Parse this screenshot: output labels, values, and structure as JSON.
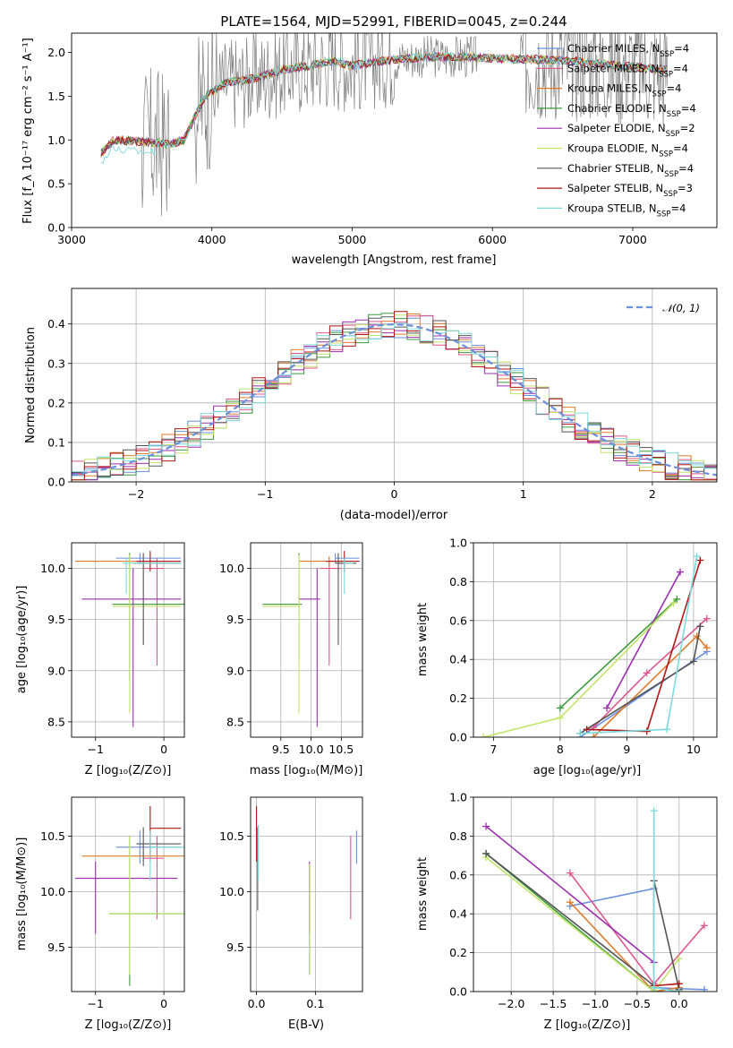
{
  "colors": {
    "chab_miles": "#6a8fdb",
    "salp_miles": "#e0578e",
    "krou_miles": "#e07b2e",
    "chab_elodie": "#3e9a3e",
    "salp_elodie": "#9b2fae",
    "krou_elodie": "#c3e46a",
    "chab_stelib": "#555555",
    "salp_stelib": "#b11515",
    "krou_stelib": "#7dd9dc",
    "data_gray": "#808080"
  },
  "chart_data": [
    {
      "id": "spectrum",
      "type": "line",
      "title": "PLATE=1564, MJD=52991, FIBERID=0045, z=0.244",
      "xlabel": "wavelength [Angstrom, rest frame]",
      "ylabel": "Flux [f_λ 10⁻¹⁷ erg cm⁻² s⁻¹ A⁻¹]",
      "xlim": [
        3000,
        7600
      ],
      "ylim": [
        0,
        2.22
      ],
      "xticks": [
        "3000",
        "4000",
        "5000",
        "6000",
        "7000"
      ],
      "yticks": [
        "0.0",
        "0.5",
        "1.0",
        "1.5",
        "2.0"
      ],
      "legend_placement": "right",
      "legend": [
        {
          "key": "chab_miles",
          "label": "Chabrier MILES, N",
          "sub": "SSP",
          "suffix": "=4"
        },
        {
          "key": "salp_miles",
          "label": "Salpeter MILES, N",
          "sub": "SSP",
          "suffix": "=4"
        },
        {
          "key": "krou_miles",
          "label": "Kroupa MILES, N",
          "sub": "SSP",
          "suffix": "=4"
        },
        {
          "key": "chab_elodie",
          "label": "Chabrier ELODIE, N",
          "sub": "SSP",
          "suffix": "=4"
        },
        {
          "key": "salp_elodie",
          "label": "Salpeter ELODIE, N",
          "sub": "SSP",
          "suffix": "=2"
        },
        {
          "key": "krou_elodie",
          "label": "Kroupa ELODIE, N",
          "sub": "SSP",
          "suffix": "=4"
        },
        {
          "key": "chab_stelib",
          "label": "Chabrier STELIB, N",
          "sub": "SSP",
          "suffix": "=4"
        },
        {
          "key": "salp_stelib",
          "label": "Salpeter STELIB, N",
          "sub": "SSP",
          "suffix": "=3"
        },
        {
          "key": "krou_stelib",
          "label": "Kroupa STELIB, N",
          "sub": "SSP",
          "suffix": "=4"
        }
      ],
      "model_continuum": [
        [
          3210,
          0.85
        ],
        [
          3300,
          1.0
        ],
        [
          3500,
          0.98
        ],
        [
          3700,
          0.95
        ],
        [
          3800,
          1.0
        ],
        [
          3950,
          1.5
        ],
        [
          4100,
          1.65
        ],
        [
          4300,
          1.7
        ],
        [
          4500,
          1.8
        ],
        [
          4700,
          1.85
        ],
        [
          4860,
          1.9
        ],
        [
          5000,
          1.85
        ],
        [
          5200,
          1.9
        ],
        [
          5500,
          1.95
        ],
        [
          5800,
          1.95
        ],
        [
          6000,
          1.93
        ],
        [
          6300,
          1.92
        ],
        [
          6600,
          1.9
        ],
        [
          6900,
          1.85
        ],
        [
          7250,
          1.8
        ]
      ]
    },
    {
      "id": "residuals",
      "type": "bar",
      "xlabel": "(data-model)/error",
      "ylabel": "Normed distribution",
      "xlim": [
        -2.5,
        2.5
      ],
      "ylim": [
        0,
        0.49
      ],
      "xticks": [
        "−2",
        "−1",
        "0",
        "1",
        "2"
      ],
      "yticks": [
        "0.0",
        "0.1",
        "0.2",
        "0.3",
        "0.4"
      ],
      "legend_label": "𝒩(0, 1)",
      "legend_placement": "top-right"
    },
    {
      "id": "age_vs_Z",
      "type": "scatter",
      "xlabel": "Z [log₁₀(Z/Z⊙)]",
      "ylabel": "age  [log₁₀(age/yr)]",
      "xlim": [
        -1.35,
        0.3
      ],
      "ylim": [
        8.35,
        10.25
      ],
      "xticks": [
        "−1",
        "0"
      ],
      "yticks": [
        "8.5",
        "9.0",
        "9.5",
        "10.0"
      ],
      "points": [
        {
          "key": "chab_miles",
          "x": -0.35,
          "xerr": [
            0.35,
            0.6
          ],
          "y": 10.1,
          "yerr": [
            0.05,
            0.05
          ]
        },
        {
          "key": "salp_miles",
          "x": -0.1,
          "xerr": [
            0.2,
            0.1
          ],
          "y": 10.0,
          "yerr": [
            0.95,
            0.1
          ]
        },
        {
          "key": "krou_miles",
          "x": -0.5,
          "xerr": [
            0.8,
            0.7
          ],
          "y": 10.07,
          "yerr": [
            0.05,
            0.05
          ]
        },
        {
          "key": "chab_elodie",
          "x": -0.5,
          "xerr": [
            0.25,
            0.8
          ],
          "y": 9.65,
          "yerr": [
            0.75,
            0.5
          ]
        },
        {
          "key": "salp_elodie",
          "x": -0.45,
          "xerr": [
            0.75,
            0.7
          ],
          "y": 9.7,
          "yerr": [
            1.25,
            0.3
          ]
        },
        {
          "key": "krou_elodie",
          "x": -0.5,
          "xerr": [
            0.25,
            0.75
          ],
          "y": 9.63,
          "yerr": [
            1.05,
            0.5
          ]
        },
        {
          "key": "chab_stelib",
          "x": -0.3,
          "xerr": [
            0.15,
            0.55
          ],
          "y": 10.05,
          "yerr": [
            0.8,
            0.1
          ]
        },
        {
          "key": "salp_stelib",
          "x": -0.2,
          "xerr": [
            0.2,
            0.45
          ],
          "y": 10.07,
          "yerr": [
            0.1,
            0.1
          ]
        },
        {
          "key": "krou_stelib",
          "x": -0.55,
          "xerr": [
            0.05,
            0.8
          ],
          "y": 10.05,
          "yerr": [
            0.3,
            0.05
          ]
        }
      ]
    },
    {
      "id": "age_vs_mass",
      "type": "scatter",
      "xlabel": "mass [log₁₀(M/M⊙)]",
      "ylabel": "",
      "xlim": [
        9.0,
        10.85
      ],
      "ylim": [
        8.35,
        10.25
      ],
      "xticks": [
        "9.5",
        "10.0",
        "10.5"
      ],
      "yticks": [
        "8.5",
        "9.0",
        "9.5",
        "10.0"
      ],
      "points": [
        {
          "key": "chab_miles",
          "x": 10.4,
          "xerr": [
            0.0,
            0.4
          ],
          "y": 10.1,
          "yerr": [
            0.05,
            0.05
          ]
        },
        {
          "key": "salp_miles",
          "x": 10.3,
          "xerr": [
            0.15,
            0.2
          ],
          "y": 10.0,
          "yerr": [
            0.95,
            0.1
          ]
        },
        {
          "key": "krou_miles",
          "x": 10.3,
          "xerr": [
            0.5,
            0.2
          ],
          "y": 10.07,
          "yerr": [
            0.05,
            0.05
          ]
        },
        {
          "key": "chab_elodie",
          "x": 9.8,
          "xerr": [
            0.6,
            0.05
          ],
          "y": 9.65,
          "yerr": [
            0.5,
            0.5
          ]
        },
        {
          "key": "salp_elodie",
          "x": 10.1,
          "xerr": [
            0.3,
            0.05
          ],
          "y": 9.7,
          "yerr": [
            1.25,
            0.3
          ]
        },
        {
          "key": "krou_elodie",
          "x": 9.8,
          "xerr": [
            0.6,
            0.0
          ],
          "y": 9.63,
          "yerr": [
            1.05,
            0.5
          ]
        },
        {
          "key": "chab_stelib",
          "x": 10.45,
          "xerr": [
            0.05,
            0.3
          ],
          "y": 10.05,
          "yerr": [
            0.8,
            0.1
          ]
        },
        {
          "key": "salp_stelib",
          "x": 10.55,
          "xerr": [
            0.3,
            0.25
          ],
          "y": 10.07,
          "yerr": [
            0.1,
            0.1
          ]
        },
        {
          "key": "krou_stelib",
          "x": 10.55,
          "xerr": [
            0.0,
            0.15
          ],
          "y": 10.05,
          "yerr": [
            0.3,
            0.05
          ]
        }
      ]
    },
    {
      "id": "massweight_vs_age",
      "type": "line",
      "xlabel": "age  [log₁₀(age/yr)]",
      "ylabel": "mass weight",
      "xlim": [
        6.7,
        10.35
      ],
      "ylim": [
        0,
        1.0
      ],
      "xticks": [
        "7",
        "8",
        "9",
        "10"
      ],
      "yticks": [
        "0.0",
        "0.2",
        "0.4",
        "0.6",
        "0.8",
        "1.0"
      ],
      "series": [
        {
          "key": "chab_miles",
          "x": [
            8.3,
            10.2
          ],
          "y": [
            0.0,
            0.44
          ]
        },
        {
          "key": "salp_miles",
          "x": [
            8.5,
            9.3,
            10.2
          ],
          "y": [
            0.05,
            0.33,
            0.61
          ]
        },
        {
          "key": "krou_miles",
          "x": [
            8.5,
            10.05,
            10.2
          ],
          "y": [
            0.0,
            0.52,
            0.46
          ]
        },
        {
          "key": "chab_elodie",
          "x": [
            8.0,
            9.75
          ],
          "y": [
            0.15,
            0.71
          ]
        },
        {
          "key": "salp_elodie",
          "x": [
            8.7,
            9.8
          ],
          "y": [
            0.15,
            0.85
          ]
        },
        {
          "key": "krou_elodie",
          "x": [
            6.85,
            8.0,
            9.7
          ],
          "y": [
            0.0,
            0.1,
            0.69
          ]
        },
        {
          "key": "chab_stelib",
          "x": [
            8.3,
            10.0,
            10.1
          ],
          "y": [
            0.02,
            0.39,
            0.57
          ]
        },
        {
          "key": "salp_stelib",
          "x": [
            8.4,
            9.3,
            10.1
          ],
          "y": [
            0.04,
            0.03,
            0.91
          ]
        },
        {
          "key": "krou_stelib",
          "x": [
            8.3,
            9.6,
            10.05
          ],
          "y": [
            0.02,
            0.04,
            0.93
          ]
        }
      ]
    },
    {
      "id": "mass_vs_Z",
      "type": "scatter",
      "xlabel": "Z [log₁₀(Z/Z⊙)]",
      "ylabel": "mass [log₁₀(M/M⊙)]",
      "xlim": [
        -1.35,
        0.3
      ],
      "ylim": [
        9.1,
        10.85
      ],
      "xticks": [
        "−1",
        "0"
      ],
      "yticks": [
        "9.5",
        "10.0",
        "10.5"
      ],
      "points": [
        {
          "key": "chab_miles",
          "x": -0.35,
          "xerr": [
            0.35,
            0.6
          ],
          "y": 10.4,
          "yerr": [
            0.15,
            0.15
          ]
        },
        {
          "key": "salp_miles",
          "x": -0.1,
          "xerr": [
            0.2,
            0.1
          ],
          "y": 10.3,
          "yerr": [
            0.55,
            0.2
          ]
        },
        {
          "key": "krou_miles",
          "x": -0.5,
          "xerr": [
            0.7,
            0.8
          ],
          "y": 10.32,
          "yerr": [
            0.0,
            0.0
          ]
        },
        {
          "key": "chab_elodie",
          "x": -0.5,
          "xerr": [
            0.3,
            0.8
          ],
          "y": 9.8,
          "yerr": [
            0.65,
            0.7
          ]
        },
        {
          "key": "salp_elodie",
          "x": -1.0,
          "xerr": [
            0.3,
            1.2
          ],
          "y": 10.12,
          "yerr": [
            0.5,
            0.15
          ]
        },
        {
          "key": "krou_elodie",
          "x": -0.5,
          "xerr": [
            0.3,
            0.8
          ],
          "y": 9.8,
          "yerr": [
            0.55,
            0.7
          ]
        },
        {
          "key": "chab_stelib",
          "x": -0.3,
          "xerr": [
            0.1,
            0.55
          ],
          "y": 10.43,
          "yerr": [
            0.2,
            0.15
          ]
        },
        {
          "key": "salp_stelib",
          "x": -0.2,
          "xerr": [
            0.0,
            0.45
          ],
          "y": 10.57,
          "yerr": [
            0.3,
            0.2
          ]
        },
        {
          "key": "krou_stelib",
          "x": -0.2,
          "xerr": [
            0.0,
            0.5
          ],
          "y": 10.4,
          "yerr": [
            0.3,
            0.15
          ]
        }
      ]
    },
    {
      "id": "mass_vs_EBV",
      "type": "scatter",
      "xlabel": "E(B-V)",
      "ylabel": "",
      "xlim": [
        -0.01,
        0.18
      ],
      "ylim": [
        9.1,
        10.85
      ],
      "xticks": [
        "0.0",
        "0.1"
      ],
      "yticks": [
        "9.5",
        "10.0",
        "10.5"
      ],
      "points": [
        {
          "key": "chab_miles",
          "x": 0.17,
          "y": 10.4,
          "yerr": [
            0.15,
            0.15
          ]
        },
        {
          "key": "salp_miles",
          "x": 0.16,
          "y": 10.3,
          "yerr": [
            0.55,
            0.2
          ]
        },
        {
          "key": "krou_miles",
          "x": 0.165,
          "y": 10.32,
          "yerr": [
            0.0,
            0.0
          ]
        },
        {
          "key": "chab_elodie",
          "x": 0.09,
          "y": 9.8,
          "yerr": [
            0.55,
            0.45
          ]
        },
        {
          "key": "salp_elodie",
          "x": 0.09,
          "y": 10.12,
          "yerr": [
            0.5,
            0.15
          ]
        },
        {
          "key": "krou_elodie",
          "x": 0.09,
          "y": 9.8,
          "yerr": [
            0.55,
            0.45
          ]
        },
        {
          "key": "chab_stelib",
          "x": 0.002,
          "y": 10.43,
          "yerr": [
            0.6,
            0.15
          ]
        },
        {
          "key": "salp_stelib",
          "x": 0.0,
          "y": 10.57,
          "yerr": [
            0.3,
            0.2
          ]
        },
        {
          "key": "krou_stelib",
          "x": 0.003,
          "y": 10.4,
          "yerr": [
            0.3,
            0.2
          ]
        }
      ]
    },
    {
      "id": "massweight_vs_Z",
      "type": "line",
      "xlabel": "Z [log₁₀(Z/Z⊙)]",
      "ylabel": "mass weight",
      "xlim": [
        -2.45,
        0.45
      ],
      "ylim": [
        0,
        1.0
      ],
      "xticks": [
        "−2.0",
        "−1.5",
        "−1.0",
        "−0.5",
        "0.0"
      ],
      "yticks": [
        "0.0",
        "0.2",
        "0.4",
        "0.6",
        "0.8",
        "1.0"
      ],
      "series": [
        {
          "key": "chab_miles",
          "x": [
            -1.3,
            -0.3,
            -0.3,
            0.3
          ],
          "y": [
            0.44,
            0.53,
            0.02,
            0.01
          ]
        },
        {
          "key": "salp_miles",
          "x": [
            -1.3,
            -0.3,
            0.3
          ],
          "y": [
            0.61,
            0.04,
            0.34
          ]
        },
        {
          "key": "krou_miles",
          "x": [
            -1.3,
            -0.3,
            0.0
          ],
          "y": [
            0.46,
            0.0,
            0.02
          ]
        },
        {
          "key": "chab_elodie",
          "x": [
            -2.3,
            -0.3
          ],
          "y": [
            0.71,
            0.0
          ]
        },
        {
          "key": "salp_elodie",
          "x": [
            -2.3,
            -0.3
          ],
          "y": [
            0.85,
            0.15
          ]
        },
        {
          "key": "krou_elodie",
          "x": [
            -2.3,
            -0.3,
            0.0
          ],
          "y": [
            0.69,
            0.0,
            0.17
          ]
        },
        {
          "key": "chab_stelib",
          "x": [
            -2.3,
            -0.3,
            -0.3,
            0.0
          ],
          "y": [
            0.71,
            0.03,
            0.57,
            0.01
          ]
        },
        {
          "key": "salp_stelib",
          "x": [
            -0.3,
            0.0
          ],
          "y": [
            0.03,
            0.04
          ]
        },
        {
          "key": "krou_stelib",
          "x": [
            -0.3,
            -0.3,
            0.0
          ],
          "y": [
            0.93,
            0.02,
            0.0
          ]
        }
      ]
    }
  ]
}
